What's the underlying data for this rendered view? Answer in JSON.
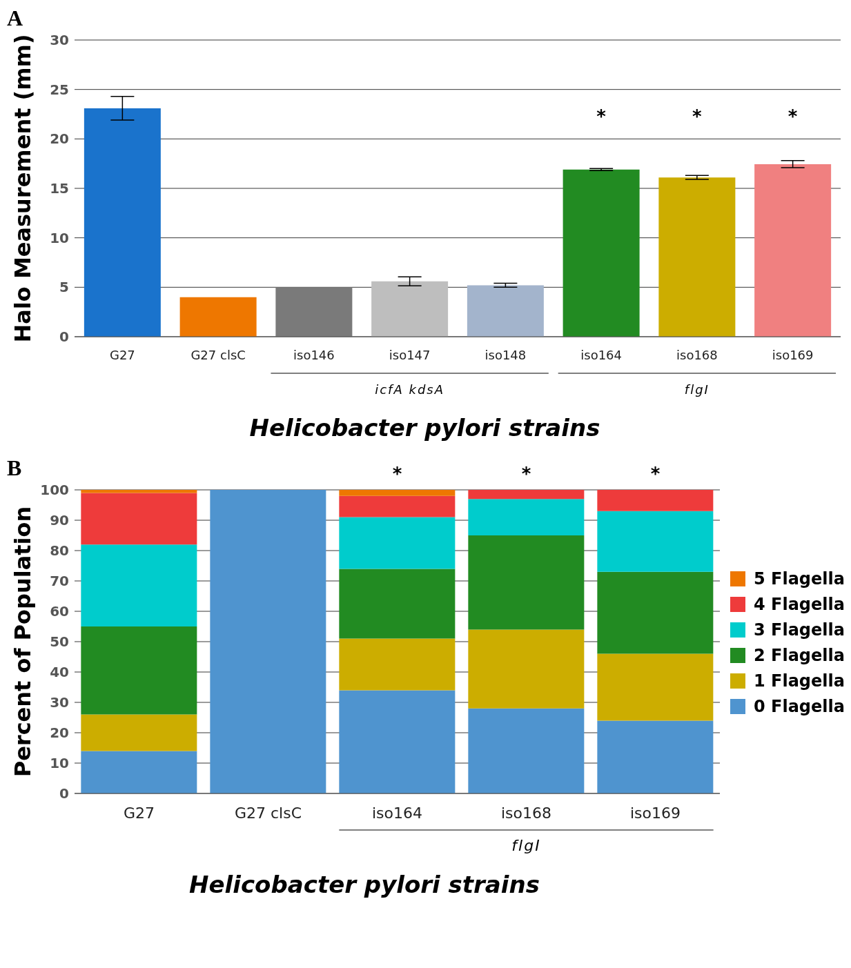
{
  "chart_data": [
    {
      "type": "bar",
      "title": "A",
      "xlabel": "Helicobacter pylori strains",
      "ylabel": "Halo Measurement (mm)",
      "categories": [
        "G27",
        "G27 clsC",
        "iso146",
        "iso147",
        "iso148",
        "iso164",
        "iso168",
        "iso169"
      ],
      "values": [
        23.1,
        4.0,
        5.0,
        5.6,
        5.2,
        16.9,
        16.1,
        17.45
      ],
      "errors": [
        1.2,
        null,
        null,
        0.45,
        0.2,
        0.1,
        0.2,
        0.35
      ],
      "value_labels": [
        null,
        null,
        null,
        null,
        null,
        "*",
        "*",
        "*"
      ],
      "colors": [
        "#1a73cc",
        "#ee7700",
        "#7a7a7a",
        "#bebebe",
        "#a3b4cc",
        "#228b22",
        "#ccad00",
        "#f08080"
      ],
      "ylim": [
        0,
        30
      ],
      "yticks": [
        0,
        5,
        10,
        15,
        20,
        25,
        30
      ],
      "grid": "y",
      "annotations": [
        "icfA kdsA",
        "flgI"
      ]
    },
    {
      "type": "bar",
      "title": "B",
      "xlabel": "Helicobacter pylori strains",
      "ylabel": "Percent of Population",
      "categories": [
        "G27",
        "G27 clsC",
        "iso164",
        "iso168",
        "iso169"
      ],
      "stacked": true,
      "legend": "right",
      "series": [
        {
          "name": "0 Flagella",
          "color": "#4f94cf",
          "values": [
            14,
            100,
            34,
            28,
            24
          ]
        },
        {
          "name": "1 Flagella",
          "color": "#ccad00",
          "values": [
            12,
            0,
            17,
            26,
            22
          ]
        },
        {
          "name": "2 Flagella",
          "color": "#228b22",
          "values": [
            29,
            0,
            23,
            31,
            27
          ]
        },
        {
          "name": "3 Flagella",
          "color": "#00cccc",
          "values": [
            27,
            0,
            17,
            12,
            20
          ]
        },
        {
          "name": "4 Flagella",
          "color": "#ee3b3b",
          "values": [
            17,
            0,
            7,
            3,
            7
          ]
        },
        {
          "name": "5 Flagella",
          "color": "#ee7700",
          "values": [
            1,
            0,
            2,
            0,
            0
          ],
          "value_labels": [
            null,
            null,
            "*",
            "*",
            "*"
          ]
        }
      ],
      "ylim": [
        0,
        100
      ],
      "yticks": [
        0,
        10,
        20,
        30,
        40,
        50,
        60,
        70,
        80,
        90,
        100
      ],
      "grid": "y",
      "annotations": [
        "flgI"
      ]
    }
  ]
}
